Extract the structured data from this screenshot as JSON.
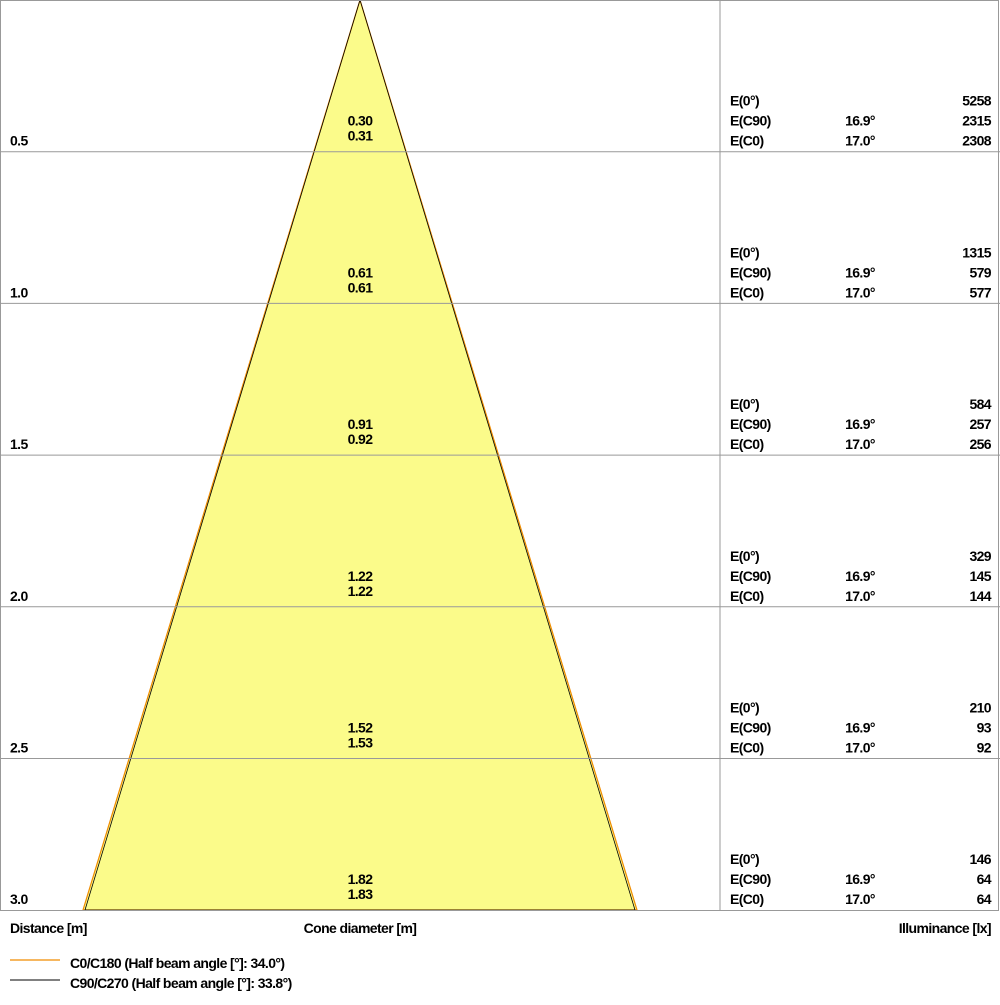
{
  "rows": [
    {
      "distance": "0.5",
      "diameters": [
        "0.30",
        "0.31"
      ],
      "illuminance": [
        "5258",
        "2315",
        "2308"
      ]
    },
    {
      "distance": "1.0",
      "diameters": [
        "0.61",
        "0.61"
      ],
      "illuminance": [
        "1315",
        "579",
        "577"
      ]
    },
    {
      "distance": "1.5",
      "diameters": [
        "0.91",
        "0.92"
      ],
      "illuminance": [
        "584",
        "257",
        "256"
      ]
    },
    {
      "distance": "2.0",
      "diameters": [
        "1.22",
        "1.22"
      ],
      "illuminance": [
        "329",
        "145",
        "144"
      ]
    },
    {
      "distance": "2.5",
      "diameters": [
        "1.52",
        "1.53"
      ],
      "illuminance": [
        "210",
        "93",
        "92"
      ]
    },
    {
      "distance": "3.0",
      "diameters": [
        "1.82",
        "1.83"
      ],
      "illuminance": [
        "146",
        "64",
        "64"
      ]
    }
  ],
  "illuminance_labels": [
    "E(0°)",
    "E(C90)",
    "E(C0)"
  ],
  "angles": [
    "16.9°",
    "17.0°"
  ],
  "axis_labels": {
    "distance": "Distance [m]",
    "diameter": "Cone diameter [m]",
    "illuminance": "Illuminance [lx]"
  },
  "legend": [
    "C0/C180 (Half beam angle [°]: 34.0°)",
    "C90/C270 (Half beam angle [°]: 33.8°)"
  ]
}
